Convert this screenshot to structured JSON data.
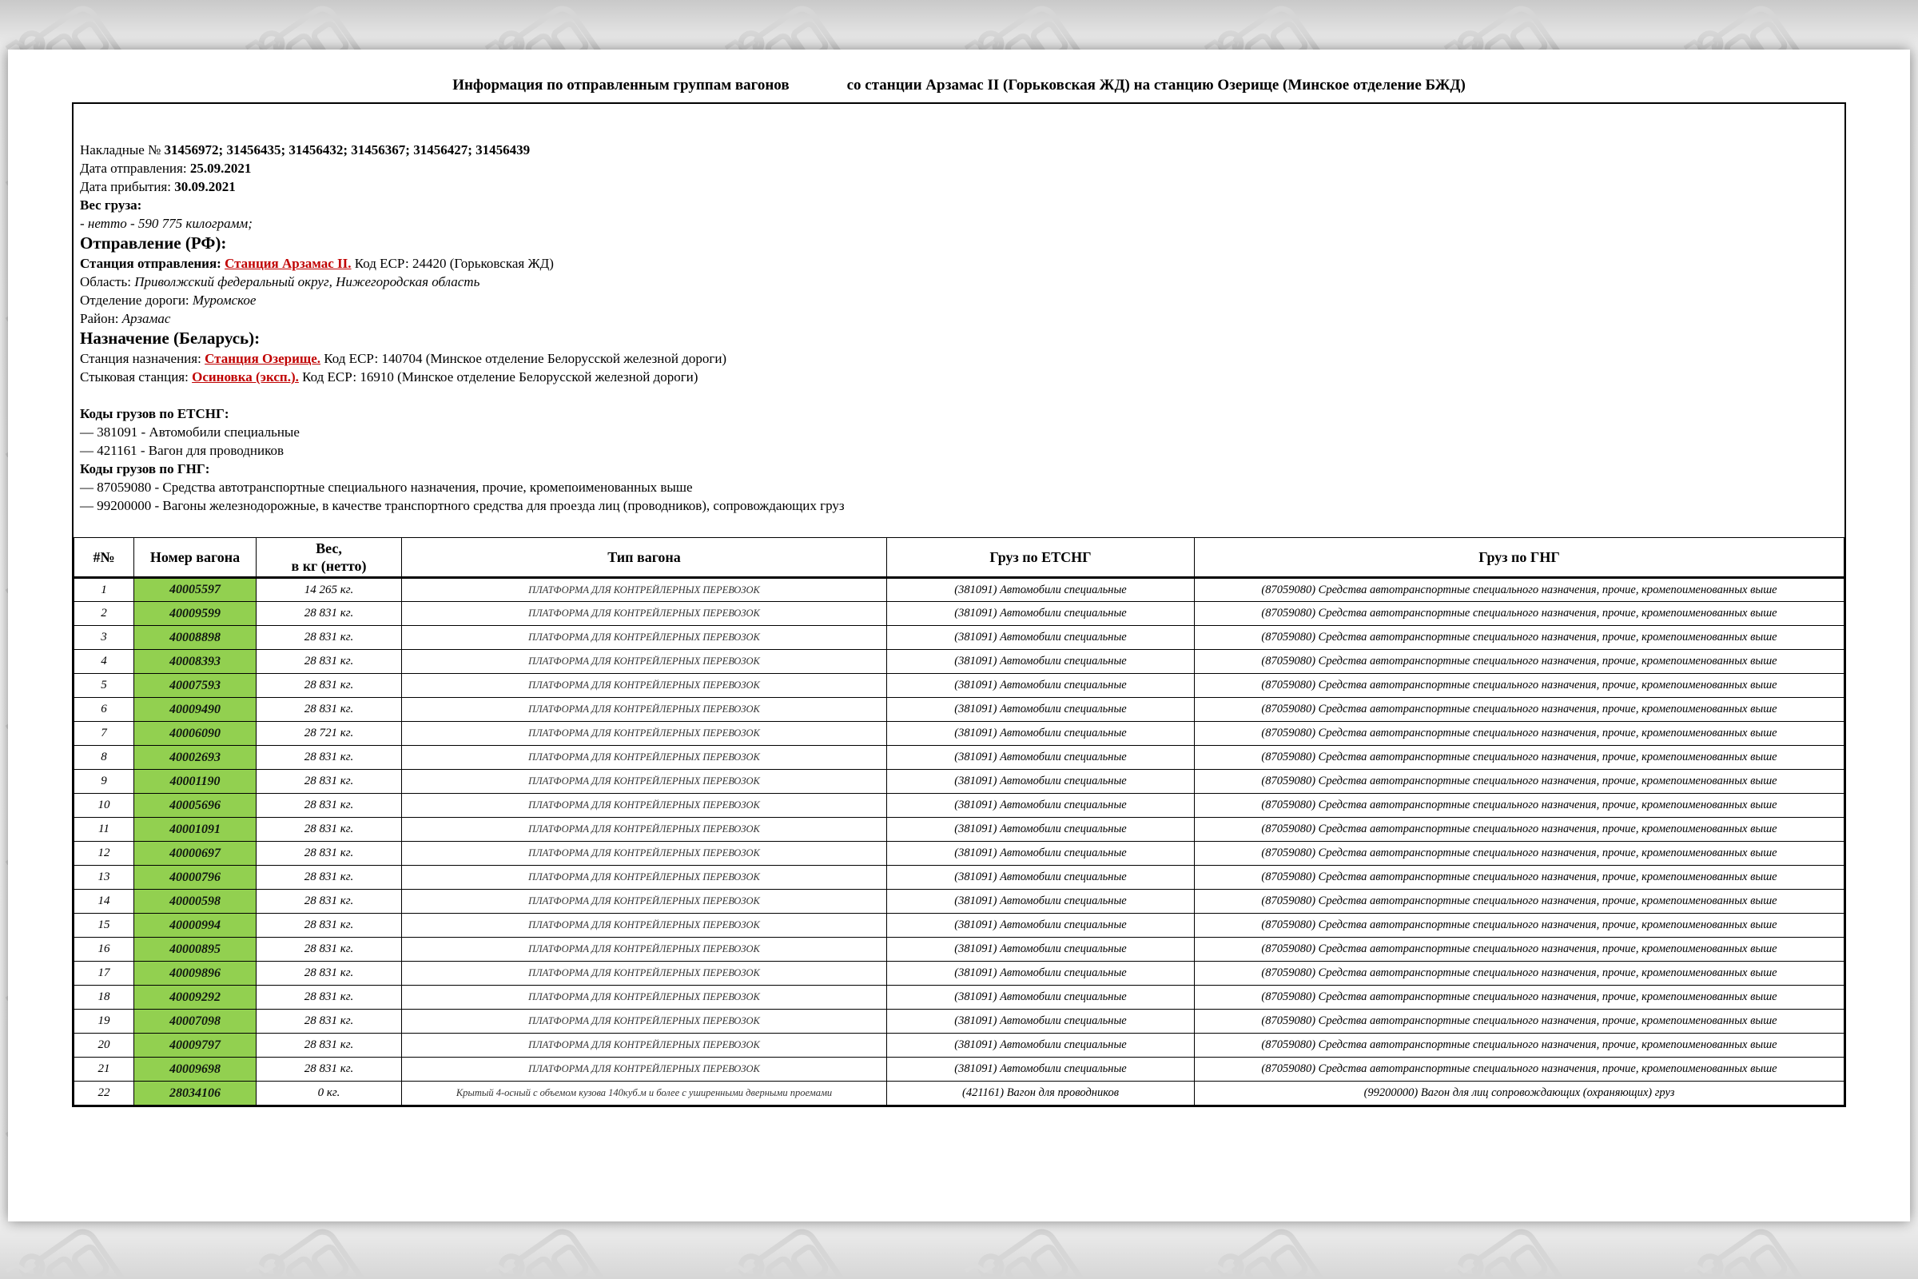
{
  "colors": {
    "wagon_cell_bg": "#92d050",
    "link_red": "#c00000"
  },
  "title": {
    "left": "Информация по отправленным группам вагонов",
    "right": "со станции Арзамас II (Горьковская ЖД) на станцию Озерище (Минское отделение БЖД)"
  },
  "info": {
    "waybills_label": "Накладные №",
    "waybills_numbers": "31456972; 31456435; 31456432; 31456367; 31456427; 31456439",
    "departure_date_label": "Дата отправления:",
    "departure_date": "25.09.2021",
    "arrival_date_label": "Дата прибытия:",
    "arrival_date": "30.09.2021",
    "weight_label": "Вес груза:",
    "weight_value": "- нетто - 590 775 килограмм;",
    "origin": {
      "header": "Отправление (РФ):",
      "station_label": "Станция отправления:",
      "station_link": "Станция Арзамас II.",
      "station_rest": "Код ЕСР: 24420 (Горьковская ЖД)",
      "region_label": "Область:",
      "region_value": "Приволжский федеральный округ, Нижегородская область",
      "division_label": "Отделение дороги:",
      "division_value": "Муромское",
      "district_label": "Район:",
      "district_value": "Арзамас"
    },
    "destination": {
      "header": "Назначение (Беларусь):",
      "station_label": "Станция назначения:",
      "station_link": "Станция Озерище.",
      "station_rest": "Код ЕСР: 140704 (Минское отделение Белорусской железной дороги)",
      "junction_label": "Стыковая станция:",
      "junction_link": "Осиновка (эксп.).",
      "junction_rest": "Код ЕСР: 16910 (Минское отделение Белорусской железной дороги)"
    },
    "etsng_header": "Коды грузов по ЕТСНГ:",
    "etsng_codes": [
      "— 381091 - Автомобили специальные",
      "— 421161 - Вагон для проводников"
    ],
    "gng_header": "Коды грузов по ГНГ:",
    "gng_codes": [
      "— 87059080 - Средства автотранспортные специального назначения, прочие, кромепоименованных выше",
      "— 99200000 - Вагоны железнодорожные, в качестве транспортного средства для проезда лиц (проводников), сопровождающих груз"
    ]
  },
  "table": {
    "headers": [
      "#№",
      "Номер вагона",
      "Вес,\nв кг (нетто)",
      "Тип вагона",
      "Груз по ЕТСНГ",
      "Груз по ГНГ"
    ],
    "rows": [
      {
        "num": "1",
        "wagon": "40005597",
        "weight": "14 265 кг.",
        "type": "ПЛАТФОРМА ДЛЯ КОНТРЕЙЛЕРНЫХ ПЕРЕВОЗОК",
        "etsng": "(381091) Автомобили специальные",
        "gng": "(87059080) Средства автотранспортные специального назначения, прочие, кромепоименованных выше"
      },
      {
        "num": "2",
        "wagon": "40009599",
        "weight": "28 831 кг.",
        "type": "ПЛАТФОРМА ДЛЯ КОНТРЕЙЛЕРНЫХ ПЕРЕВОЗОК",
        "etsng": "(381091) Автомобили специальные",
        "gng": "(87059080) Средства автотранспортные специального назначения, прочие, кромепоименованных выше"
      },
      {
        "num": "3",
        "wagon": "40008898",
        "weight": "28 831 кг.",
        "type": "ПЛАТФОРМА ДЛЯ КОНТРЕЙЛЕРНЫХ ПЕРЕВОЗОК",
        "etsng": "(381091) Автомобили специальные",
        "gng": "(87059080) Средства автотранспортные специального назначения, прочие, кромепоименованных выше"
      },
      {
        "num": "4",
        "wagon": "40008393",
        "weight": "28 831 кг.",
        "type": "ПЛАТФОРМА ДЛЯ КОНТРЕЙЛЕРНЫХ ПЕРЕВОЗОК",
        "etsng": "(381091) Автомобили специальные",
        "gng": "(87059080) Средства автотранспортные специального назначения, прочие, кромепоименованных выше"
      },
      {
        "num": "5",
        "wagon": "40007593",
        "weight": "28 831 кг.",
        "type": "ПЛАТФОРМА ДЛЯ КОНТРЕЙЛЕРНЫХ ПЕРЕВОЗОК",
        "etsng": "(381091) Автомобили специальные",
        "gng": "(87059080) Средства автотранспортные специального назначения, прочие, кромепоименованных выше"
      },
      {
        "num": "6",
        "wagon": "40009490",
        "weight": "28 831 кг.",
        "type": "ПЛАТФОРМА ДЛЯ КОНТРЕЙЛЕРНЫХ ПЕРЕВОЗОК",
        "etsng": "(381091) Автомобили специальные",
        "gng": "(87059080) Средства автотранспортные специального назначения, прочие, кромепоименованных выше"
      },
      {
        "num": "7",
        "wagon": "40006090",
        "weight": "28 721 кг.",
        "type": "ПЛАТФОРМА ДЛЯ КОНТРЕЙЛЕРНЫХ ПЕРЕВОЗОК",
        "etsng": "(381091) Автомобили специальные",
        "gng": "(87059080) Средства автотранспортные специального назначения, прочие, кромепоименованных выше"
      },
      {
        "num": "8",
        "wagon": "40002693",
        "weight": "28 831 кг.",
        "type": "ПЛАТФОРМА ДЛЯ КОНТРЕЙЛЕРНЫХ ПЕРЕВОЗОК",
        "etsng": "(381091) Автомобили специальные",
        "gng": "(87059080) Средства автотранспортные специального назначения, прочие, кромепоименованных выше"
      },
      {
        "num": "9",
        "wagon": "40001190",
        "weight": "28 831 кг.",
        "type": "ПЛАТФОРМА ДЛЯ КОНТРЕЙЛЕРНЫХ ПЕРЕВОЗОК",
        "etsng": "(381091) Автомобили специальные",
        "gng": "(87059080) Средства автотранспортные специального назначения, прочие, кромепоименованных выше"
      },
      {
        "num": "10",
        "wagon": "40005696",
        "weight": "28 831 кг.",
        "type": "ПЛАТФОРМА ДЛЯ КОНТРЕЙЛЕРНЫХ ПЕРЕВОЗОК",
        "etsng": "(381091) Автомобили специальные",
        "gng": "(87059080) Средства автотранспортные специального назначения, прочие, кромепоименованных выше"
      },
      {
        "num": "11",
        "wagon": "40001091",
        "weight": "28 831 кг.",
        "type": "ПЛАТФОРМА ДЛЯ КОНТРЕЙЛЕРНЫХ ПЕРЕВОЗОК",
        "etsng": "(381091) Автомобили специальные",
        "gng": "(87059080) Средства автотранспортные специального назначения, прочие, кромепоименованных выше"
      },
      {
        "num": "12",
        "wagon": "40000697",
        "weight": "28 831 кг.",
        "type": "ПЛАТФОРМА ДЛЯ КОНТРЕЙЛЕРНЫХ ПЕРЕВОЗОК",
        "etsng": "(381091) Автомобили специальные",
        "gng": "(87059080) Средства автотранспортные специального назначения, прочие, кромепоименованных выше"
      },
      {
        "num": "13",
        "wagon": "40000796",
        "weight": "28 831 кг.",
        "type": "ПЛАТФОРМА ДЛЯ КОНТРЕЙЛЕРНЫХ ПЕРЕВОЗОК",
        "etsng": "(381091) Автомобили специальные",
        "gng": "(87059080) Средства автотранспортные специального назначения, прочие, кромепоименованных выше"
      },
      {
        "num": "14",
        "wagon": "40000598",
        "weight": "28 831 кг.",
        "type": "ПЛАТФОРМА ДЛЯ КОНТРЕЙЛЕРНЫХ ПЕРЕВОЗОК",
        "etsng": "(381091) Автомобили специальные",
        "gng": "(87059080) Средства автотранспортные специального назначения, прочие, кромепоименованных выше"
      },
      {
        "num": "15",
        "wagon": "40000994",
        "weight": "28 831 кг.",
        "type": "ПЛАТФОРМА ДЛЯ КОНТРЕЙЛЕРНЫХ ПЕРЕВОЗОК",
        "etsng": "(381091) Автомобили специальные",
        "gng": "(87059080) Средства автотранспортные специального назначения, прочие, кромепоименованных выше"
      },
      {
        "num": "16",
        "wagon": "40000895",
        "weight": "28 831 кг.",
        "type": "ПЛАТФОРМА ДЛЯ КОНТРЕЙЛЕРНЫХ ПЕРЕВОЗОК",
        "etsng": "(381091) Автомобили специальные",
        "gng": "(87059080) Средства автотранспортные специального назначения, прочие, кромепоименованных выше"
      },
      {
        "num": "17",
        "wagon": "40009896",
        "weight": "28 831 кг.",
        "type": "ПЛАТФОРМА ДЛЯ КОНТРЕЙЛЕРНЫХ ПЕРЕВОЗОК",
        "etsng": "(381091) Автомобили специальные",
        "gng": "(87059080) Средства автотранспортные специального назначения, прочие, кромепоименованных выше"
      },
      {
        "num": "18",
        "wagon": "40009292",
        "weight": "28 831 кг.",
        "type": "ПЛАТФОРМА ДЛЯ КОНТРЕЙЛЕРНЫХ ПЕРЕВОЗОК",
        "etsng": "(381091) Автомобили специальные",
        "gng": "(87059080) Средства автотранспортные специального назначения, прочие, кромепоименованных выше"
      },
      {
        "num": "19",
        "wagon": "40007098",
        "weight": "28 831 кг.",
        "type": "ПЛАТФОРМА ДЛЯ КОНТРЕЙЛЕРНЫХ ПЕРЕВОЗОК",
        "etsng": "(381091) Автомобили специальные",
        "gng": "(87059080) Средства автотранспортные специального назначения, прочие, кромепоименованных выше"
      },
      {
        "num": "20",
        "wagon": "40009797",
        "weight": "28 831 кг.",
        "type": "ПЛАТФОРМА ДЛЯ КОНТРЕЙЛЕРНЫХ ПЕРЕВОЗОК",
        "etsng": "(381091) Автомобили специальные",
        "gng": "(87059080) Средства автотранспортные специального назначения, прочие, кромепоименованных выше"
      },
      {
        "num": "21",
        "wagon": "40009698",
        "weight": "28 831 кг.",
        "type": "ПЛАТФОРМА ДЛЯ КОНТРЕЙЛЕРНЫХ ПЕРЕВОЗОК",
        "etsng": "(381091) Автомобили специальные",
        "gng": "(87059080) Средства автотранспортные специального назначения, прочие, кромепоименованных выше"
      },
      {
        "num": "22",
        "wagon": "28034106",
        "weight": "0 кг.",
        "type": "Крытый 4-осный с объемом кузова 140куб.м и более с уширенными дверными проемами",
        "etsng": "(421161) Вагон для проводников",
        "gng": "(99200000) Вагон для лиц сопровождающих (охраняющих) груз"
      }
    ]
  }
}
